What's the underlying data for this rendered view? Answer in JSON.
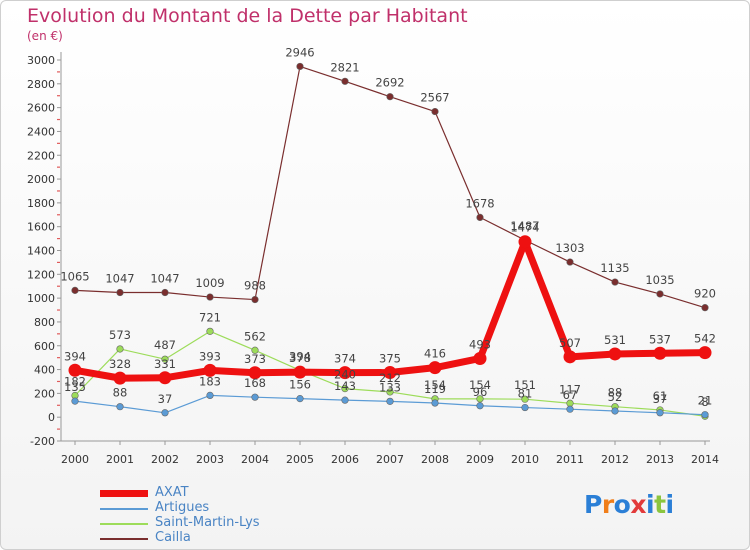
{
  "title": "Evolution du Montant de la Dette par Habitant",
  "subtitle": "(en €)",
  "logo": {
    "text": "Proxiti",
    "colors": [
      "#2b7fd6",
      "#f07e1a",
      "#2b7fd6",
      "#e23a3a",
      "#2b7fd6",
      "#8bc53f",
      "#2b7fd6"
    ]
  },
  "chart_data": {
    "type": "line",
    "title": "Evolution du Montant de la Dette par Habitant",
    "subtitle": "(en €)",
    "xlabel": "",
    "ylabel": "",
    "x": [
      2000,
      2001,
      2002,
      2003,
      2004,
      2005,
      2006,
      2007,
      2008,
      2009,
      2010,
      2011,
      2012,
      2013,
      2014
    ],
    "ylim": [
      -200,
      3000
    ],
    "yticks": [
      -200,
      0,
      200,
      400,
      600,
      800,
      1000,
      1200,
      1400,
      1600,
      1800,
      2000,
      2200,
      2400,
      2600,
      2800,
      3000
    ],
    "grid": false,
    "legend_position": "bottom-left",
    "series": [
      {
        "name": "AXAT",
        "color": "#ee1111",
        "values": [
          394,
          328,
          331,
          393,
          373,
          378,
          374,
          375,
          416,
          493,
          1474,
          507,
          531,
          537,
          542
        ]
      },
      {
        "name": "Artigues",
        "color": "#5b9bd5",
        "values": [
          135,
          88,
          37,
          183,
          168,
          156,
          143,
          133,
          119,
          96,
          81,
          67,
          52,
          37,
          21
        ]
      },
      {
        "name": "Saint-Martin-Lys",
        "color": "#9ddc5a",
        "values": [
          182,
          573,
          487,
          721,
          562,
          394,
          240,
          212,
          154,
          154,
          151,
          117,
          88,
          61,
          8
        ]
      },
      {
        "name": "Cailla",
        "color": "#7a2e2e",
        "values": [
          1065,
          1047,
          1047,
          1009,
          988,
          2946,
          2821,
          2692,
          2567,
          1678,
          1487,
          1303,
          1135,
          1035,
          920
        ]
      }
    ]
  }
}
